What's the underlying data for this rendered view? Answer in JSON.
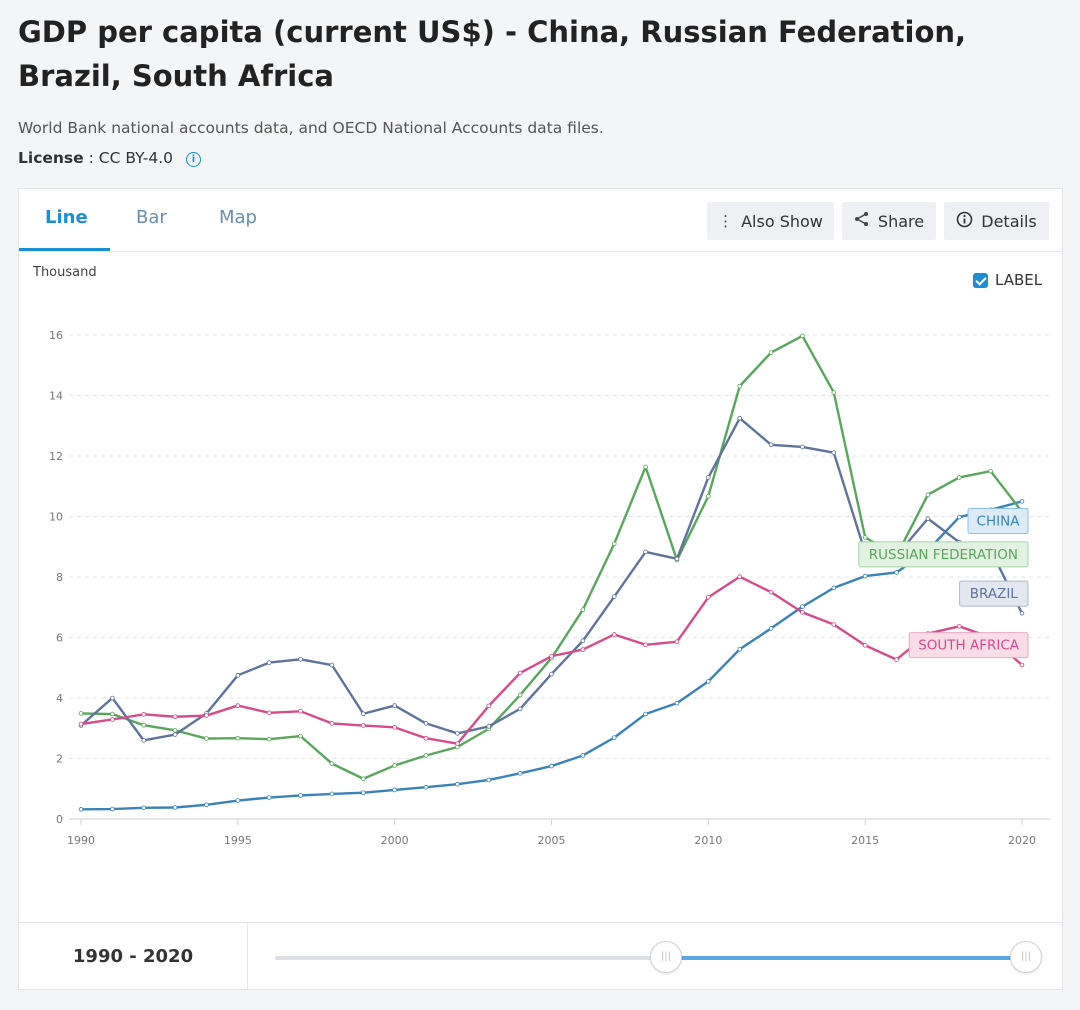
{
  "header": {
    "title": "GDP per capita (current US$) - China, Russian Federation, Brazil, South Africa",
    "source": "World Bank national accounts data, and OECD National Accounts data files.",
    "license_label": "License",
    "license_value": ": CC BY-4.0",
    "info_icon": "info-icon"
  },
  "tabs": [
    {
      "label": "Line",
      "active": true
    },
    {
      "label": "Bar",
      "active": false
    },
    {
      "label": "Map",
      "active": false
    }
  ],
  "toolbar": {
    "also_show": {
      "label": "Also Show",
      "icon": "more-vertical-icon"
    },
    "share": {
      "label": "Share",
      "icon": "share-icon"
    },
    "details": {
      "label": "Details",
      "icon": "info-circle-icon"
    }
  },
  "label_toggle": {
    "label": "LABEL",
    "checked": true
  },
  "footer": {
    "range_label": "1990 - 2020",
    "slider_start": 0.52,
    "slider_end": 1.0
  },
  "chart_data": {
    "type": "line",
    "title": "",
    "xlabel": "",
    "ylabel": "Thousand",
    "x": [
      1990,
      1991,
      1992,
      1993,
      1994,
      1995,
      1996,
      1997,
      1998,
      1999,
      2000,
      2001,
      2002,
      2003,
      2004,
      2005,
      2006,
      2007,
      2008,
      2009,
      2010,
      2011,
      2012,
      2013,
      2014,
      2015,
      2016,
      2017,
      2018,
      2019,
      2020
    ],
    "xticks": [
      1990,
      1995,
      2000,
      2005,
      2010,
      2015,
      2020
    ],
    "yticks": [
      0,
      2,
      4,
      6,
      8,
      10,
      12,
      14,
      16
    ],
    "ylim": [
      0,
      16
    ],
    "xlim": [
      1990,
      2020
    ],
    "grid": true,
    "series": [
      {
        "name": "CHINA",
        "color": "#3a83b8",
        "label_bg": "#dcebf7",
        "label_border": "#8ec0e6",
        "values": [
          0.32,
          0.33,
          0.37,
          0.38,
          0.47,
          0.61,
          0.71,
          0.78,
          0.83,
          0.87,
          0.96,
          1.05,
          1.15,
          1.29,
          1.51,
          1.75,
          2.1,
          2.69,
          3.47,
          3.83,
          4.55,
          5.61,
          6.3,
          7.02,
          7.64,
          8.03,
          8.15,
          8.88,
          9.98,
          10.22,
          10.5
        ]
      },
      {
        "name": "RUSSIAN FEDERATION",
        "color": "#5aa65c",
        "label_bg": "#e2f1e2",
        "label_border": "#a8d3a9",
        "values": [
          3.49,
          3.47,
          3.1,
          2.93,
          2.66,
          2.67,
          2.64,
          2.74,
          1.83,
          1.33,
          1.77,
          2.1,
          2.38,
          2.98,
          4.1,
          5.32,
          6.92,
          9.1,
          11.64,
          8.56,
          10.67,
          14.31,
          15.42,
          15.97,
          14.1,
          9.31,
          8.7,
          10.72,
          11.29,
          11.5,
          10.16
        ]
      },
      {
        "name": "BRAZIL",
        "color": "#60739c",
        "label_bg": "#e3e7f0",
        "label_border": "#aeb8cf",
        "values": [
          3.09,
          4.0,
          2.6,
          2.79,
          3.49,
          4.75,
          5.17,
          5.28,
          5.09,
          3.48,
          3.75,
          3.16,
          2.83,
          3.06,
          3.64,
          4.79,
          5.89,
          7.35,
          8.83,
          8.6,
          11.29,
          13.25,
          12.37,
          12.3,
          12.11,
          8.81,
          8.71,
          9.93,
          9.15,
          8.9,
          6.8
        ]
      },
      {
        "name": "SOUTH AFRICA",
        "color": "#d84b8a",
        "label_bg": "#f8dde9",
        "label_border": "#eda7c6",
        "values": [
          3.14,
          3.29,
          3.46,
          3.38,
          3.42,
          3.75,
          3.51,
          3.56,
          3.16,
          3.09,
          3.03,
          2.67,
          2.49,
          3.74,
          4.83,
          5.38,
          5.6,
          6.1,
          5.76,
          5.86,
          7.33,
          8.01,
          7.5,
          6.83,
          6.43,
          5.74,
          5.27,
          6.13,
          6.37,
          6.0,
          5.09
        ]
      }
    ]
  }
}
